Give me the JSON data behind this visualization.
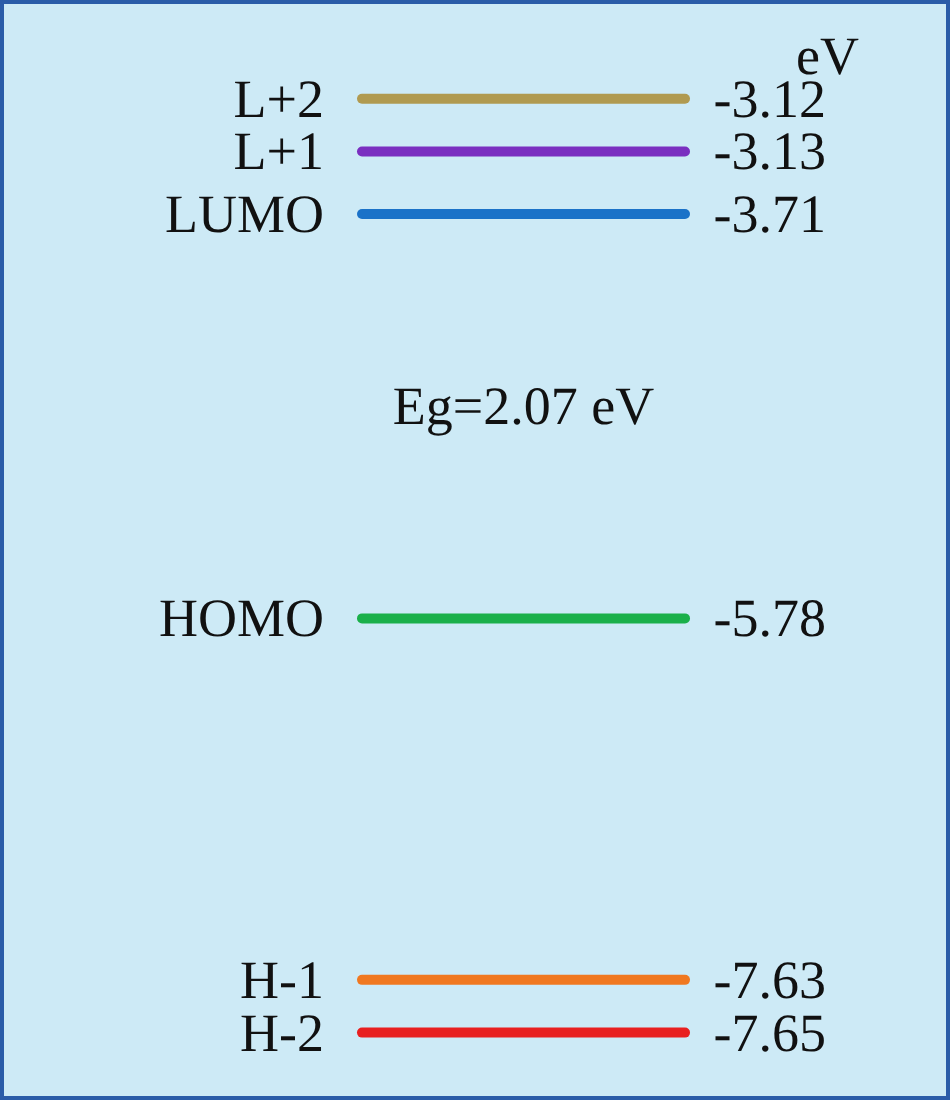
{
  "chart_data": {
    "type": "other",
    "ylabel": "eV",
    "categories": [
      "L+2",
      "L+1",
      "LUMO",
      "HOMO",
      "H-1",
      "H-2"
    ],
    "values": [
      -3.12,
      -3.13,
      -3.71,
      -5.78,
      -7.63,
      -7.65
    ],
    "colors": [
      "#b09a50",
      "#7a2fc0",
      "#1a72c8",
      "#1ab04a",
      "#f07820",
      "#e82020"
    ],
    "data_labels": true,
    "annotations": [
      "Eg=2.07 eV"
    ]
  }
}
